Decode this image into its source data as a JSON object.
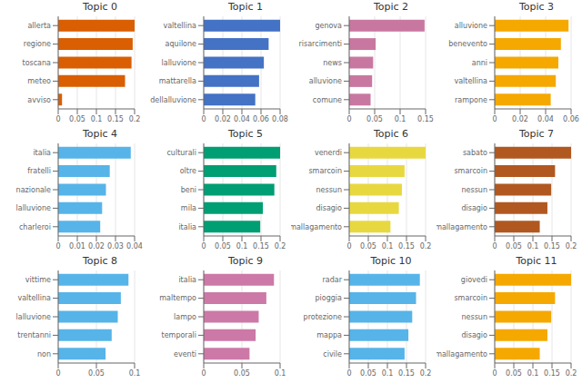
{
  "chart_data": [
    {
      "type": "bar",
      "title": "Topic 0",
      "orientation": "horizontal",
      "color": "#d95f02",
      "categories": [
        "allerta",
        "regione",
        "toscana",
        "meteo",
        "avviso"
      ],
      "values": [
        0.2,
        0.195,
        0.192,
        0.175,
        0.01
      ],
      "xlim": [
        0,
        0.2
      ],
      "xticks": [
        0,
        0.05,
        0.1,
        0.15,
        0.2
      ],
      "grid": true
    },
    {
      "type": "bar",
      "title": "Topic 1",
      "orientation": "horizontal",
      "color": "#4472c4",
      "categories": [
        "valtellina",
        "aquilone",
        "lalluvione",
        "mattarella",
        "dellalluvione"
      ],
      "values": [
        0.08,
        0.068,
        0.063,
        0.058,
        0.054
      ],
      "xlim": [
        0,
        0.08
      ],
      "xticks": [
        0,
        0.02,
        0.04,
        0.06,
        0.08
      ],
      "grid": true
    },
    {
      "type": "bar",
      "title": "Topic 2",
      "orientation": "horizontal",
      "color": "#c878a0",
      "categories": [
        "genova",
        "risarcimenti",
        "news",
        "alluvione",
        "comune"
      ],
      "values": [
        0.148,
        0.052,
        0.047,
        0.045,
        0.042
      ],
      "xlim": [
        0,
        0.15
      ],
      "xticks": [
        0,
        0.05,
        0.1,
        0.15
      ],
      "grid": true
    },
    {
      "type": "bar",
      "title": "Topic 3",
      "orientation": "horizontal",
      "color": "#f5a800",
      "categories": [
        "alluvione",
        "benevento",
        "anni",
        "valtellina",
        "rampone"
      ],
      "values": [
        0.058,
        0.052,
        0.05,
        0.048,
        0.044
      ],
      "xlim": [
        0,
        0.06
      ],
      "xticks": [
        0,
        0.02,
        0.04,
        0.06
      ],
      "grid": true
    },
    {
      "type": "bar",
      "title": "Topic 4",
      "orientation": "horizontal",
      "color": "#56b4e9",
      "categories": [
        "italia",
        "fratelli",
        "nazionale",
        "lalluvione",
        "charleroi"
      ],
      "values": [
        0.038,
        0.027,
        0.025,
        0.023,
        0.022
      ],
      "xlim": [
        0,
        0.04
      ],
      "xticks": [
        0,
        0.01,
        0.02,
        0.03,
        0.04
      ],
      "grid": true
    },
    {
      "type": "bar",
      "title": "Topic 5",
      "orientation": "horizontal",
      "color": "#009e73",
      "categories": [
        "culturali",
        "oltre",
        "beni",
        "mila",
        "italia"
      ],
      "values": [
        0.2,
        0.19,
        0.185,
        0.155,
        0.148
      ],
      "xlim": [
        0,
        0.2
      ],
      "xticks": [
        0,
        0.05,
        0.1,
        0.15,
        0.2
      ],
      "grid": true
    },
    {
      "type": "bar",
      "title": "Topic 6",
      "orientation": "horizontal",
      "color": "#e8d840",
      "categories": [
        "venerdi",
        "smarcoin",
        "nessun",
        "disagio",
        "cmallagamento"
      ],
      "values": [
        0.2,
        0.145,
        0.138,
        0.13,
        0.108
      ],
      "xlim": [
        0,
        0.2
      ],
      "xticks": [
        0,
        0.05,
        0.1,
        0.15,
        0.2
      ],
      "grid": true
    },
    {
      "type": "bar",
      "title": "Topic 7",
      "orientation": "horizontal",
      "color": "#b05820",
      "categories": [
        "sabato",
        "smarcoin",
        "nessun",
        "disagio",
        "cmallagamento"
      ],
      "values": [
        0.2,
        0.158,
        0.148,
        0.138,
        0.118
      ],
      "xlim": [
        0,
        0.2
      ],
      "xticks": [
        0,
        0.05,
        0.1,
        0.15,
        0.2
      ],
      "grid": true
    },
    {
      "type": "bar",
      "title": "Topic 8",
      "orientation": "horizontal",
      "color": "#56b4e9",
      "categories": [
        "vittime",
        "valtellina",
        "lalluvione",
        "trentanni",
        "non"
      ],
      "values": [
        0.092,
        0.082,
        0.078,
        0.07,
        0.062
      ],
      "xlim": [
        0,
        0.1
      ],
      "xticks": [
        0,
        0.05,
        0.1
      ],
      "grid": true
    },
    {
      "type": "bar",
      "title": "Topic 9",
      "orientation": "horizontal",
      "color": "#cc79a7",
      "categories": [
        "italia",
        "maltempo",
        "lampo",
        "temporali",
        "eventi"
      ],
      "values": [
        0.092,
        0.082,
        0.072,
        0.068,
        0.06
      ],
      "xlim": [
        0,
        0.1
      ],
      "xticks": [
        0,
        0.05,
        0.1
      ],
      "grid": true
    },
    {
      "type": "bar",
      "title": "Topic 10",
      "orientation": "horizontal",
      "color": "#56b4e9",
      "categories": [
        "radar",
        "pioggia",
        "protezione",
        "mappa",
        "civile"
      ],
      "values": [
        0.185,
        0.175,
        0.165,
        0.155,
        0.145
      ],
      "xlim": [
        0,
        0.2
      ],
      "xticks": [
        0,
        0.05,
        0.1,
        0.15,
        0.2
      ],
      "grid": true
    },
    {
      "type": "bar",
      "title": "Topic 11",
      "orientation": "horizontal",
      "color": "#f5a800",
      "categories": [
        "giovedi",
        "smarcoin",
        "nessun",
        "disagio",
        "cmallagamento"
      ],
      "values": [
        0.2,
        0.158,
        0.148,
        0.138,
        0.118
      ],
      "xlim": [
        0,
        0.2
      ],
      "xticks": [
        0,
        0.05,
        0.1,
        0.15,
        0.2
      ],
      "grid": true
    }
  ]
}
